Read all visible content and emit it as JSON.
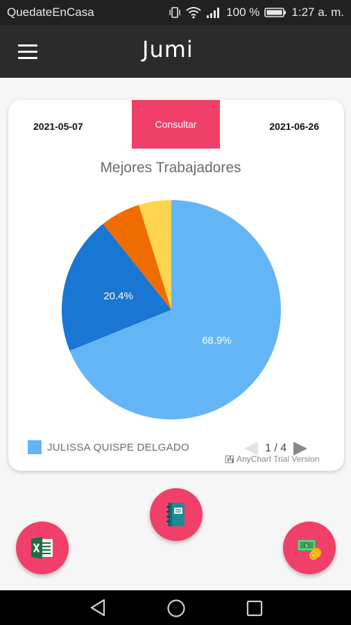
{
  "status_bar": {
    "carrier": "QuedateEnCasa",
    "battery": "100 %",
    "time": "1:27 a. m.",
    "icons": [
      "vibrate-icon",
      "wifi-icon",
      "signal-icon",
      "battery-icon"
    ]
  },
  "app_bar": {
    "title": "Jumi",
    "menu_icon": "hamburger-menu-icon"
  },
  "filter": {
    "start_date": "2021-05-07",
    "end_date": "2021-06-26",
    "consult_label": "Consultar",
    "accent": "#f0406a"
  },
  "chart_data": {
    "type": "pie",
    "title": "Mejores Trabajadores",
    "slices": [
      {
        "value": 68.9,
        "label": "68.9%",
        "color": "#64b5f6"
      },
      {
        "value": 20.4,
        "label": "20.4%",
        "color": "#1976d2"
      },
      {
        "value": 5.9,
        "label": "",
        "color": "#ef6c00"
      },
      {
        "value": 4.8,
        "label": "",
        "color": "#ffd54f"
      }
    ],
    "start_angle_deg": 0,
    "direction": "clockwise",
    "legend": {
      "placement": "bottom-left",
      "visible_entry": "JULISSA QUISPE DELGADO",
      "visible_entry_color": "#64b5f6",
      "page": "1 / 4"
    },
    "watermark": "AnyChart Trial Version"
  },
  "fabs": {
    "notebook_icon": "notebook-icon",
    "excel_icon": "excel-icon",
    "money_icon": "money-icon"
  },
  "nav_bar": {
    "icons": [
      "back-icon",
      "home-icon",
      "recent-apps-icon"
    ]
  }
}
